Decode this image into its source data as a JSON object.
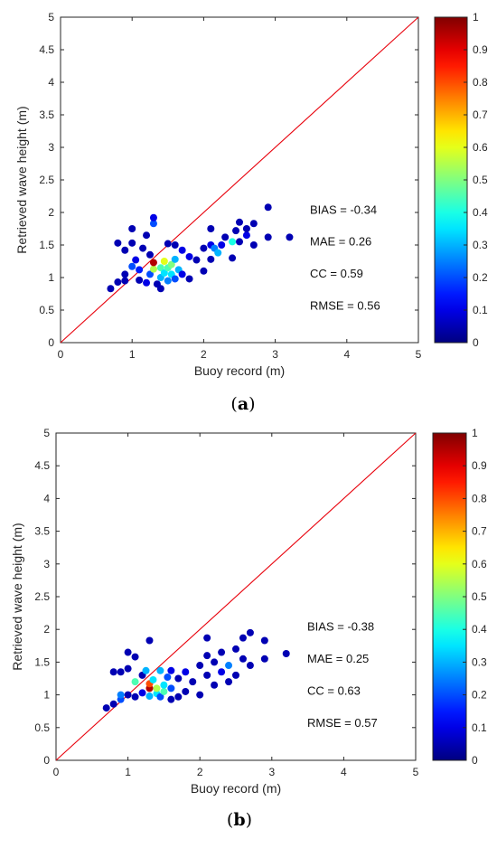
{
  "chart_data": [
    {
      "type": "scatter",
      "panel_label": "a",
      "xlabel": "Buoy record (m)",
      "ylabel": "Retrieved wave height (m)",
      "xlim": [
        0,
        5
      ],
      "ylim": [
        0,
        5
      ],
      "xticks": [
        "0",
        "1",
        "2",
        "3",
        "4",
        "5"
      ],
      "yticks": [
        "0",
        "0.5",
        "1",
        "1.5",
        "2",
        "2.5",
        "3",
        "3.5",
        "4",
        "4.5",
        "5"
      ],
      "grid": false,
      "reference_line": "y = x",
      "colorbar": {
        "min": 0,
        "max": 1,
        "ticks": [
          "0",
          "0.1",
          "0.2",
          "0.3",
          "0.4",
          "0.5",
          "0.6",
          "0.7",
          "0.8",
          "0.9",
          "1"
        ]
      },
      "stats": [
        "BIAS = -0.34",
        "MAE = 0.26",
        "CC = 0.59",
        "RMSE = 0.56"
      ],
      "points": [
        {
          "x": 0.7,
          "y": 0.83,
          "c": 0.05
        },
        {
          "x": 0.8,
          "y": 0.93,
          "c": 0.05
        },
        {
          "x": 0.8,
          "y": 1.53,
          "c": 0.05
        },
        {
          "x": 0.9,
          "y": 0.95,
          "c": 0.05
        },
        {
          "x": 0.9,
          "y": 1.05,
          "c": 0.05
        },
        {
          "x": 0.9,
          "y": 1.42,
          "c": 0.05
        },
        {
          "x": 1.0,
          "y": 1.17,
          "c": 0.2
        },
        {
          "x": 1.0,
          "y": 1.53,
          "c": 0.05
        },
        {
          "x": 1.0,
          "y": 1.75,
          "c": 0.05
        },
        {
          "x": 1.05,
          "y": 1.27,
          "c": 0.1
        },
        {
          "x": 1.1,
          "y": 0.96,
          "c": 0.05
        },
        {
          "x": 1.1,
          "y": 1.12,
          "c": 0.15
        },
        {
          "x": 1.15,
          "y": 1.45,
          "c": 0.05
        },
        {
          "x": 1.2,
          "y": 0.92,
          "c": 0.1
        },
        {
          "x": 1.2,
          "y": 1.65,
          "c": 0.05
        },
        {
          "x": 1.25,
          "y": 1.05,
          "c": 0.2
        },
        {
          "x": 1.25,
          "y": 1.35,
          "c": 0.05
        },
        {
          "x": 1.3,
          "y": 1.13,
          "c": 0.55
        },
        {
          "x": 1.3,
          "y": 1.23,
          "c": 0.95
        },
        {
          "x": 1.3,
          "y": 1.83,
          "c": 0.2
        },
        {
          "x": 1.3,
          "y": 1.92,
          "c": 0.1
        },
        {
          "x": 1.35,
          "y": 0.9,
          "c": 0.05
        },
        {
          "x": 1.4,
          "y": 0.83,
          "c": 0.05
        },
        {
          "x": 1.4,
          "y": 1.0,
          "c": 0.3
        },
        {
          "x": 1.4,
          "y": 1.15,
          "c": 0.45
        },
        {
          "x": 1.45,
          "y": 1.07,
          "c": 0.35
        },
        {
          "x": 1.45,
          "y": 1.25,
          "c": 0.6
        },
        {
          "x": 1.5,
          "y": 0.95,
          "c": 0.25
        },
        {
          "x": 1.5,
          "y": 1.15,
          "c": 0.45
        },
        {
          "x": 1.5,
          "y": 1.52,
          "c": 0.05
        },
        {
          "x": 1.55,
          "y": 1.05,
          "c": 0.35
        },
        {
          "x": 1.55,
          "y": 1.2,
          "c": 0.5
        },
        {
          "x": 1.6,
          "y": 0.98,
          "c": 0.2
        },
        {
          "x": 1.6,
          "y": 1.28,
          "c": 0.3
        },
        {
          "x": 1.6,
          "y": 1.5,
          "c": 0.05
        },
        {
          "x": 1.65,
          "y": 1.12,
          "c": 0.3
        },
        {
          "x": 1.7,
          "y": 1.05,
          "c": 0.1
        },
        {
          "x": 1.7,
          "y": 1.42,
          "c": 0.1
        },
        {
          "x": 1.8,
          "y": 1.32,
          "c": 0.1
        },
        {
          "x": 1.8,
          "y": 0.98,
          "c": 0.05
        },
        {
          "x": 1.9,
          "y": 1.27,
          "c": 0.05
        },
        {
          "x": 2.0,
          "y": 1.1,
          "c": 0.05
        },
        {
          "x": 2.0,
          "y": 1.45,
          "c": 0.05
        },
        {
          "x": 2.1,
          "y": 1.28,
          "c": 0.05
        },
        {
          "x": 2.1,
          "y": 1.5,
          "c": 0.1
        },
        {
          "x": 2.1,
          "y": 1.75,
          "c": 0.05
        },
        {
          "x": 2.15,
          "y": 1.45,
          "c": 0.25
        },
        {
          "x": 2.2,
          "y": 1.38,
          "c": 0.3
        },
        {
          "x": 2.25,
          "y": 1.5,
          "c": 0.1
        },
        {
          "x": 2.3,
          "y": 1.62,
          "c": 0.05
        },
        {
          "x": 2.4,
          "y": 1.3,
          "c": 0.05
        },
        {
          "x": 2.4,
          "y": 1.55,
          "c": 0.4
        },
        {
          "x": 2.45,
          "y": 1.72,
          "c": 0.05
        },
        {
          "x": 2.5,
          "y": 1.55,
          "c": 0.05
        },
        {
          "x": 2.5,
          "y": 1.85,
          "c": 0.05
        },
        {
          "x": 2.6,
          "y": 1.65,
          "c": 0.1
        },
        {
          "x": 2.6,
          "y": 1.75,
          "c": 0.05
        },
        {
          "x": 2.7,
          "y": 1.5,
          "c": 0.05
        },
        {
          "x": 2.7,
          "y": 1.83,
          "c": 0.05
        },
        {
          "x": 2.9,
          "y": 1.62,
          "c": 0.05
        },
        {
          "x": 2.9,
          "y": 2.08,
          "c": 0.05
        },
        {
          "x": 3.2,
          "y": 1.62,
          "c": 0.05
        }
      ]
    },
    {
      "type": "scatter",
      "panel_label": "b",
      "xlabel": "Buoy record (m)",
      "ylabel": "Retrieved wave height (m)",
      "xlim": [
        0,
        5
      ],
      "ylim": [
        0,
        5
      ],
      "xticks": [
        "0",
        "1",
        "2",
        "3",
        "4",
        "5"
      ],
      "yticks": [
        "0",
        "0.5",
        "1",
        "1.5",
        "2",
        "2.5",
        "3",
        "3.5",
        "4",
        "4.5",
        "5"
      ],
      "grid": false,
      "reference_line": "y = x",
      "colorbar": {
        "min": 0,
        "max": 1,
        "ticks": [
          "0",
          "0.1",
          "0.2",
          "0.3",
          "0.4",
          "0.5",
          "0.6",
          "0.7",
          "0.8",
          "0.9",
          "1"
        ]
      },
      "stats": [
        "BIAS = -0.38",
        "MAE = 0.25",
        "CC = 0.63",
        "RMSE = 0.57"
      ],
      "points": [
        {
          "x": 0.7,
          "y": 0.8,
          "c": 0.05
        },
        {
          "x": 0.8,
          "y": 0.86,
          "c": 0.05
        },
        {
          "x": 0.8,
          "y": 1.35,
          "c": 0.05
        },
        {
          "x": 0.9,
          "y": 0.93,
          "c": 0.2
        },
        {
          "x": 0.9,
          "y": 1.0,
          "c": 0.25
        },
        {
          "x": 0.9,
          "y": 1.35,
          "c": 0.05
        },
        {
          "x": 1.0,
          "y": 1.0,
          "c": 0.05
        },
        {
          "x": 1.0,
          "y": 1.4,
          "c": 0.05
        },
        {
          "x": 1.0,
          "y": 1.65,
          "c": 0.05
        },
        {
          "x": 1.1,
          "y": 0.97,
          "c": 0.05
        },
        {
          "x": 1.1,
          "y": 1.2,
          "c": 0.45
        },
        {
          "x": 1.1,
          "y": 1.58,
          "c": 0.05
        },
        {
          "x": 1.2,
          "y": 1.03,
          "c": 0.1
        },
        {
          "x": 1.2,
          "y": 1.3,
          "c": 0.05
        },
        {
          "x": 1.25,
          "y": 1.37,
          "c": 0.3
        },
        {
          "x": 1.3,
          "y": 0.98,
          "c": 0.3
        },
        {
          "x": 1.3,
          "y": 1.1,
          "c": 0.95
        },
        {
          "x": 1.3,
          "y": 1.17,
          "c": 0.8
        },
        {
          "x": 1.3,
          "y": 1.83,
          "c": 0.05
        },
        {
          "x": 1.35,
          "y": 1.23,
          "c": 0.35
        },
        {
          "x": 1.4,
          "y": 1.02,
          "c": 0.35
        },
        {
          "x": 1.4,
          "y": 1.1,
          "c": 0.55
        },
        {
          "x": 1.45,
          "y": 0.97,
          "c": 0.2
        },
        {
          "x": 1.45,
          "y": 1.37,
          "c": 0.3
        },
        {
          "x": 1.5,
          "y": 1.05,
          "c": 0.45
        },
        {
          "x": 1.5,
          "y": 1.15,
          "c": 0.35
        },
        {
          "x": 1.55,
          "y": 1.27,
          "c": 0.2
        },
        {
          "x": 1.6,
          "y": 0.93,
          "c": 0.05
        },
        {
          "x": 1.6,
          "y": 1.1,
          "c": 0.2
        },
        {
          "x": 1.6,
          "y": 1.37,
          "c": 0.1
        },
        {
          "x": 1.7,
          "y": 0.97,
          "c": 0.05
        },
        {
          "x": 1.7,
          "y": 1.25,
          "c": 0.05
        },
        {
          "x": 1.8,
          "y": 1.05,
          "c": 0.05
        },
        {
          "x": 1.8,
          "y": 1.35,
          "c": 0.1
        },
        {
          "x": 1.9,
          "y": 1.2,
          "c": 0.05
        },
        {
          "x": 2.0,
          "y": 1.0,
          "c": 0.05
        },
        {
          "x": 2.0,
          "y": 1.45,
          "c": 0.05
        },
        {
          "x": 2.1,
          "y": 1.3,
          "c": 0.05
        },
        {
          "x": 2.1,
          "y": 1.6,
          "c": 0.05
        },
        {
          "x": 2.1,
          "y": 1.87,
          "c": 0.05
        },
        {
          "x": 2.2,
          "y": 1.15,
          "c": 0.05
        },
        {
          "x": 2.2,
          "y": 1.5,
          "c": 0.05
        },
        {
          "x": 2.3,
          "y": 1.35,
          "c": 0.1
        },
        {
          "x": 2.3,
          "y": 1.65,
          "c": 0.05
        },
        {
          "x": 2.4,
          "y": 1.2,
          "c": 0.05
        },
        {
          "x": 2.4,
          "y": 1.45,
          "c": 0.25
        },
        {
          "x": 2.5,
          "y": 1.3,
          "c": 0.05
        },
        {
          "x": 2.5,
          "y": 1.7,
          "c": 0.05
        },
        {
          "x": 2.6,
          "y": 1.55,
          "c": 0.05
        },
        {
          "x": 2.6,
          "y": 1.87,
          "c": 0.05
        },
        {
          "x": 2.7,
          "y": 1.45,
          "c": 0.05
        },
        {
          "x": 2.7,
          "y": 1.95,
          "c": 0.05
        },
        {
          "x": 2.9,
          "y": 1.55,
          "c": 0.05
        },
        {
          "x": 2.9,
          "y": 1.83,
          "c": 0.05
        },
        {
          "x": 3.2,
          "y": 1.63,
          "c": 0.05
        }
      ]
    }
  ]
}
